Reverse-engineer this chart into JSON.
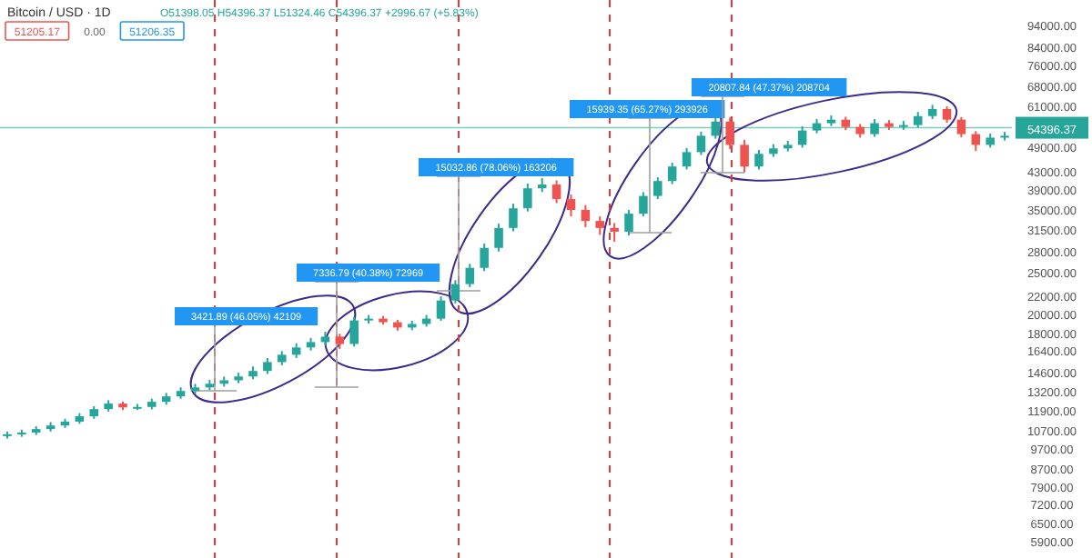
{
  "chart_data": {
    "type": "candlestick",
    "title": "Bitcoin / USD · 1D",
    "subtitle": "O51398.05 H54396.37 L51324.46 C54396.37 +2996.67 (+5.83%)",
    "categories": [
      null,
      null,
      null,
      null,
      null,
      null,
      null,
      null,
      null,
      null,
      null,
      null,
      null,
      null,
      null,
      null,
      null,
      null,
      null,
      null,
      null,
      null,
      null,
      null,
      null,
      null,
      null,
      null,
      null,
      null,
      null,
      null,
      null,
      null,
      null,
      null,
      null,
      null,
      null,
      null,
      null,
      null,
      null,
      null,
      null,
      null,
      null,
      null,
      null,
      null,
      null,
      null,
      null,
      null,
      null,
      null,
      null,
      null,
      null,
      null,
      null,
      null,
      null,
      null,
      null,
      null,
      null,
      null,
      null,
      null
    ],
    "log": true,
    "ylim": [
      5400,
      108000
    ],
    "yticks": [
      {
        "value": 94000,
        "label": "94000.00"
      },
      {
        "value": 84000,
        "label": "84000.00"
      },
      {
        "value": 76000,
        "label": "76000.00"
      },
      {
        "value": 68000,
        "label": "68000.00"
      },
      {
        "value": 61000,
        "label": "61000.00"
      },
      {
        "value": 49000,
        "label": "49000.00"
      },
      {
        "value": 43000,
        "label": "43000.00"
      },
      {
        "value": 39000,
        "label": "39000.00"
      },
      {
        "value": 35000,
        "label": "35000.00"
      },
      {
        "value": 31500,
        "label": "31500.00"
      },
      {
        "value": 28000,
        "label": "28000.00"
      },
      {
        "value": 25000,
        "label": "25000.00"
      },
      {
        "value": 22000,
        "label": "22000.00"
      },
      {
        "value": 20000,
        "label": "20000.00"
      },
      {
        "value": 18000,
        "label": "18000.00"
      },
      {
        "value": 16400,
        "label": "16400.00"
      },
      {
        "value": 14600,
        "label": "14600.00"
      },
      {
        "value": 13200,
        "label": "13200.00"
      },
      {
        "value": 11900,
        "label": "11900.00"
      },
      {
        "value": 10700,
        "label": "10700.00"
      },
      {
        "value": 9700,
        "label": "9700.00"
      },
      {
        "value": 8700,
        "label": "8700.00"
      },
      {
        "value": 7900,
        "label": "7900.00"
      },
      {
        "value": 7200,
        "label": "7200.00"
      },
      {
        "value": 6500,
        "label": "6500.00"
      },
      {
        "value": 5900,
        "label": "5900.00"
      }
    ],
    "ohlc": [
      [
        10400,
        10650,
        10250,
        10490
      ],
      [
        10490,
        10750,
        10350,
        10590
      ],
      [
        10590,
        10950,
        10450,
        10790
      ],
      [
        10790,
        11200,
        10650,
        11000
      ],
      [
        11000,
        11400,
        10850,
        11230
      ],
      [
        11230,
        11750,
        11100,
        11560
      ],
      [
        11560,
        12200,
        11400,
        12010
      ],
      [
        12010,
        12600,
        11850,
        12370
      ],
      [
        12370,
        12500,
        11950,
        12120
      ],
      [
        12120,
        12350,
        11950,
        12150
      ],
      [
        12150,
        12700,
        12000,
        12490
      ],
      [
        12490,
        13100,
        12300,
        12860
      ],
      [
        12860,
        13500,
        12700,
        13240
      ],
      [
        13240,
        13750,
        13050,
        13490
      ],
      [
        13490,
        14050,
        13300,
        13760
      ],
      [
        13760,
        14300,
        13550,
        14020
      ],
      [
        14020,
        14600,
        13800,
        14310
      ],
      [
        14310,
        15100,
        14100,
        14740
      ],
      [
        14740,
        15800,
        14500,
        15460
      ],
      [
        15460,
        16400,
        15200,
        16080
      ],
      [
        16080,
        17100,
        15800,
        16720
      ],
      [
        16720,
        17600,
        16450,
        17210
      ],
      [
        17210,
        18200,
        16900,
        17720
      ],
      [
        17720,
        18000,
        16600,
        17040
      ],
      [
        17040,
        19700,
        16800,
        19330
      ],
      [
        19330,
        19900,
        19000,
        19520
      ],
      [
        19520,
        19800,
        18900,
        19150
      ],
      [
        19150,
        19400,
        18300,
        18610
      ],
      [
        18610,
        19300,
        18350,
        18970
      ],
      [
        18970,
        19900,
        18700,
        19520
      ],
      [
        19520,
        22000,
        19300,
        21520
      ],
      [
        21520,
        24000,
        21200,
        23500
      ],
      [
        23500,
        26200,
        23100,
        25640
      ],
      [
        25640,
        29200,
        25200,
        28540
      ],
      [
        28540,
        32500,
        28000,
        31760
      ],
      [
        31760,
        36200,
        31200,
        35300
      ],
      [
        35300,
        40300,
        34700,
        39300
      ],
      [
        39300,
        41500,
        38500,
        40100
      ],
      [
        40100,
        41000,
        36300,
        37090
      ],
      [
        37090,
        38000,
        33800,
        34990
      ],
      [
        34990,
        35900,
        31900,
        32980
      ],
      [
        32980,
        33800,
        30600,
        31760
      ],
      [
        31760,
        32600,
        29500,
        31130
      ],
      [
        31130,
        35000,
        30500,
        34300
      ],
      [
        34300,
        38500,
        33800,
        37720
      ],
      [
        37720,
        41700,
        37100,
        40860
      ],
      [
        40860,
        45100,
        40200,
        44180
      ],
      [
        44180,
        48800,
        43500,
        47720
      ],
      [
        47720,
        53300,
        47000,
        52100
      ],
      [
        52100,
        58300,
        51300,
        56240
      ],
      [
        56240,
        57500,
        48500,
        49620
      ],
      [
        49620,
        51000,
        42800,
        44180
      ],
      [
        44180,
        48300,
        43500,
        47290
      ],
      [
        47290,
        49800,
        46500,
        48680
      ],
      [
        48680,
        50700,
        47900,
        49620
      ],
      [
        49620,
        54800,
        48900,
        53600
      ],
      [
        53600,
        57000,
        52800,
        55740
      ],
      [
        55740,
        58100,
        54900,
        56810
      ],
      [
        56810,
        57700,
        53700,
        54630
      ],
      [
        54630,
        55500,
        51600,
        52570
      ],
      [
        52570,
        57000,
        51800,
        55740
      ],
      [
        55740,
        56700,
        53800,
        54630
      ],
      [
        54630,
        56400,
        53800,
        55180
      ],
      [
        55180,
        59200,
        54400,
        57900
      ],
      [
        57900,
        61500,
        57000,
        60140
      ],
      [
        60140,
        61000,
        55900,
        56810
      ],
      [
        56810,
        57600,
        51700,
        52570
      ],
      [
        52570,
        53400,
        48000,
        49620
      ],
      [
        49620,
        52700,
        48900,
        51580
      ],
      [
        51580,
        53200,
        50800,
        52100
      ]
    ],
    "ref_lines": [
      {
        "axis": "y",
        "value": 54396.37,
        "label": "54396.37",
        "color": "#26a69a",
        "line_style": "solid"
      }
    ],
    "annotations": [
      "51205.17",
      "0.00",
      "51206.35",
      "3421.89 (46.05%) 42109",
      "7336.79 (40.38%) 72969",
      "15032.86 (78.06%) 163206",
      "15939.35 (65.27%) 293926",
      "20807.84 (47.37%) 208704"
    ]
  }
}
